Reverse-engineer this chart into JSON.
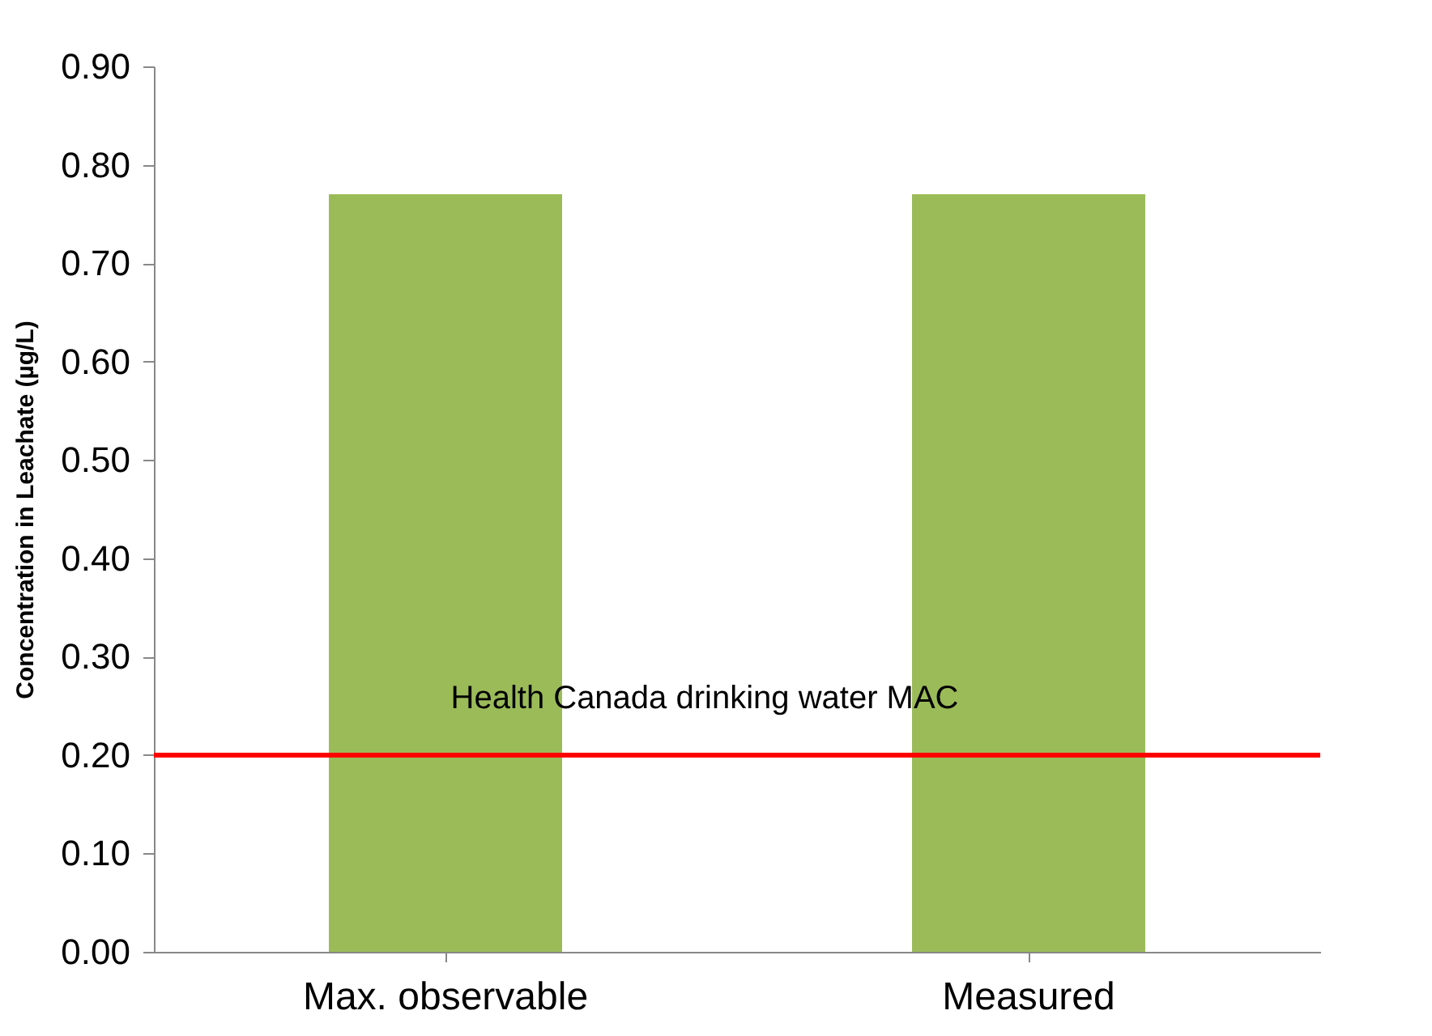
{
  "chart_data": {
    "type": "bar",
    "ylabel": "Concentration in Leachate (µg/L)",
    "categories": [
      "Max. observable",
      "Measured"
    ],
    "values": [
      0.77,
      0.77
    ],
    "color": "#9bbb59",
    "ylim": [
      0,
      0.9
    ],
    "yticks": [
      {
        "value": 0,
        "label": "0.00"
      },
      {
        "value": 0.1,
        "label": "0.10"
      },
      {
        "value": 0.2,
        "label": "0.20"
      },
      {
        "value": 0.3,
        "label": "0.30"
      },
      {
        "value": 0.4,
        "label": "0.40"
      },
      {
        "value": 0.5,
        "label": "0.50"
      },
      {
        "value": 0.6,
        "label": "0.60"
      },
      {
        "value": 0.7,
        "label": "0.70"
      },
      {
        "value": 0.8,
        "label": "0.80"
      },
      {
        "value": 0.9,
        "label": "0.90"
      }
    ],
    "ref_lines": [
      {
        "axis": "y",
        "value": 0.2,
        "label": "Health Canada drinking water MAC",
        "color": "#ff0000"
      }
    ]
  }
}
